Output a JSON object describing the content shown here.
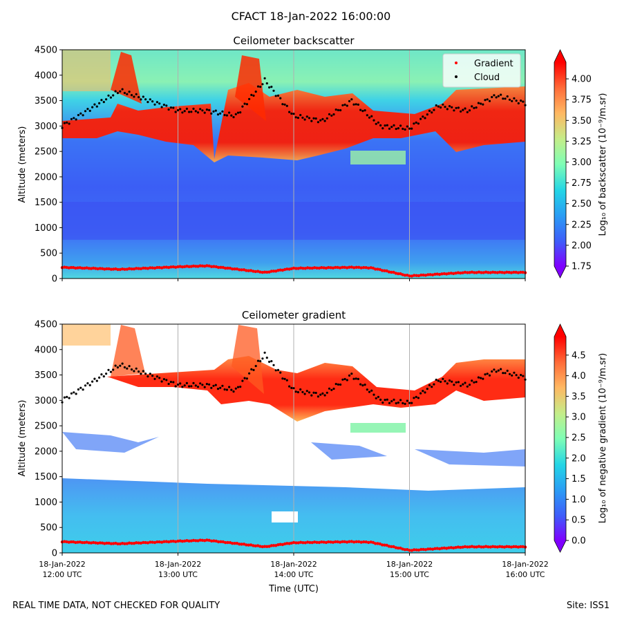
{
  "suptitle": "CFACT 18-Jan-2022 16:00:00",
  "footer_left": "REAL TIME DATA, NOT CHECKED FOR QUALITY",
  "footer_right": "Site: ISS1",
  "chart_data": [
    {
      "type": "heatmap",
      "title": "Ceilometer backscatter",
      "ylabel": "Altitude (meters)",
      "xlabel": "",
      "ylim": [
        0,
        4500
      ],
      "yticks": [
        0,
        500,
        1000,
        1500,
        2000,
        2500,
        3000,
        3500,
        4000,
        4500
      ],
      "colorbar_label": "Log₁₀ of backscatter (10⁻⁹/m.sr)",
      "colorbar_ticks": [
        "1.75",
        "2.00",
        "2.25",
        "2.50",
        "2.75",
        "3.00",
        "3.25",
        "3.50",
        "3.75",
        "4.00"
      ],
      "colorbar_range": [
        1.75,
        4.2
      ],
      "grid": "vertical",
      "legend": {
        "placement": "top-right",
        "entries": [
          "Gradient",
          "Cloud"
        ]
      },
      "series": [
        {
          "name": "Gradient",
          "color": "#ff0000",
          "x": [
            "12:00",
            "12:15",
            "12:30",
            "13:00",
            "13:15",
            "13:45",
            "14:00",
            "14:30",
            "14:40",
            "15:00",
            "15:30",
            "16:00"
          ],
          "y": [
            220,
            200,
            180,
            230,
            250,
            120,
            200,
            220,
            210,
            50,
            120,
            120
          ]
        },
        {
          "name": "Cloud",
          "color": "#000000",
          "x": [
            "12:00",
            "12:30",
            "13:00",
            "13:15",
            "13:30",
            "13:45",
            "14:00",
            "14:15",
            "14:30",
            "14:45",
            "15:00",
            "15:15",
            "15:30",
            "15:45",
            "16:00"
          ],
          "y": [
            3000,
            3700,
            3300,
            3300,
            3200,
            3900,
            3200,
            3100,
            3500,
            3000,
            2950,
            3400,
            3300,
            3600,
            3450
          ]
        }
      ]
    },
    {
      "type": "heatmap",
      "title": "Ceilometer gradient",
      "ylabel": "Altitude (meters)",
      "xlabel": "Time (UTC)",
      "ylim": [
        0,
        4500
      ],
      "yticks": [
        0,
        500,
        1000,
        1500,
        2000,
        2500,
        3000,
        3500,
        4000,
        4500
      ],
      "xticks": [
        "18-Jan-2022\n12:00 UTC",
        "18-Jan-2022\n13:00 UTC",
        "18-Jan-2022\n14:00 UTC",
        "18-Jan-2022\n15:00 UTC",
        "18-Jan-2022\n16:00 UTC"
      ],
      "colorbar_label": "Log₁₀ of negative gradient (10⁻⁹/m.sr)",
      "colorbar_ticks": [
        "0.0",
        "0.5",
        "1.0",
        "1.5",
        "2.0",
        "2.5",
        "3.0",
        "3.5",
        "4.0",
        "4.5"
      ],
      "colorbar_range": [
        0,
        4.95
      ],
      "grid": "vertical"
    }
  ]
}
